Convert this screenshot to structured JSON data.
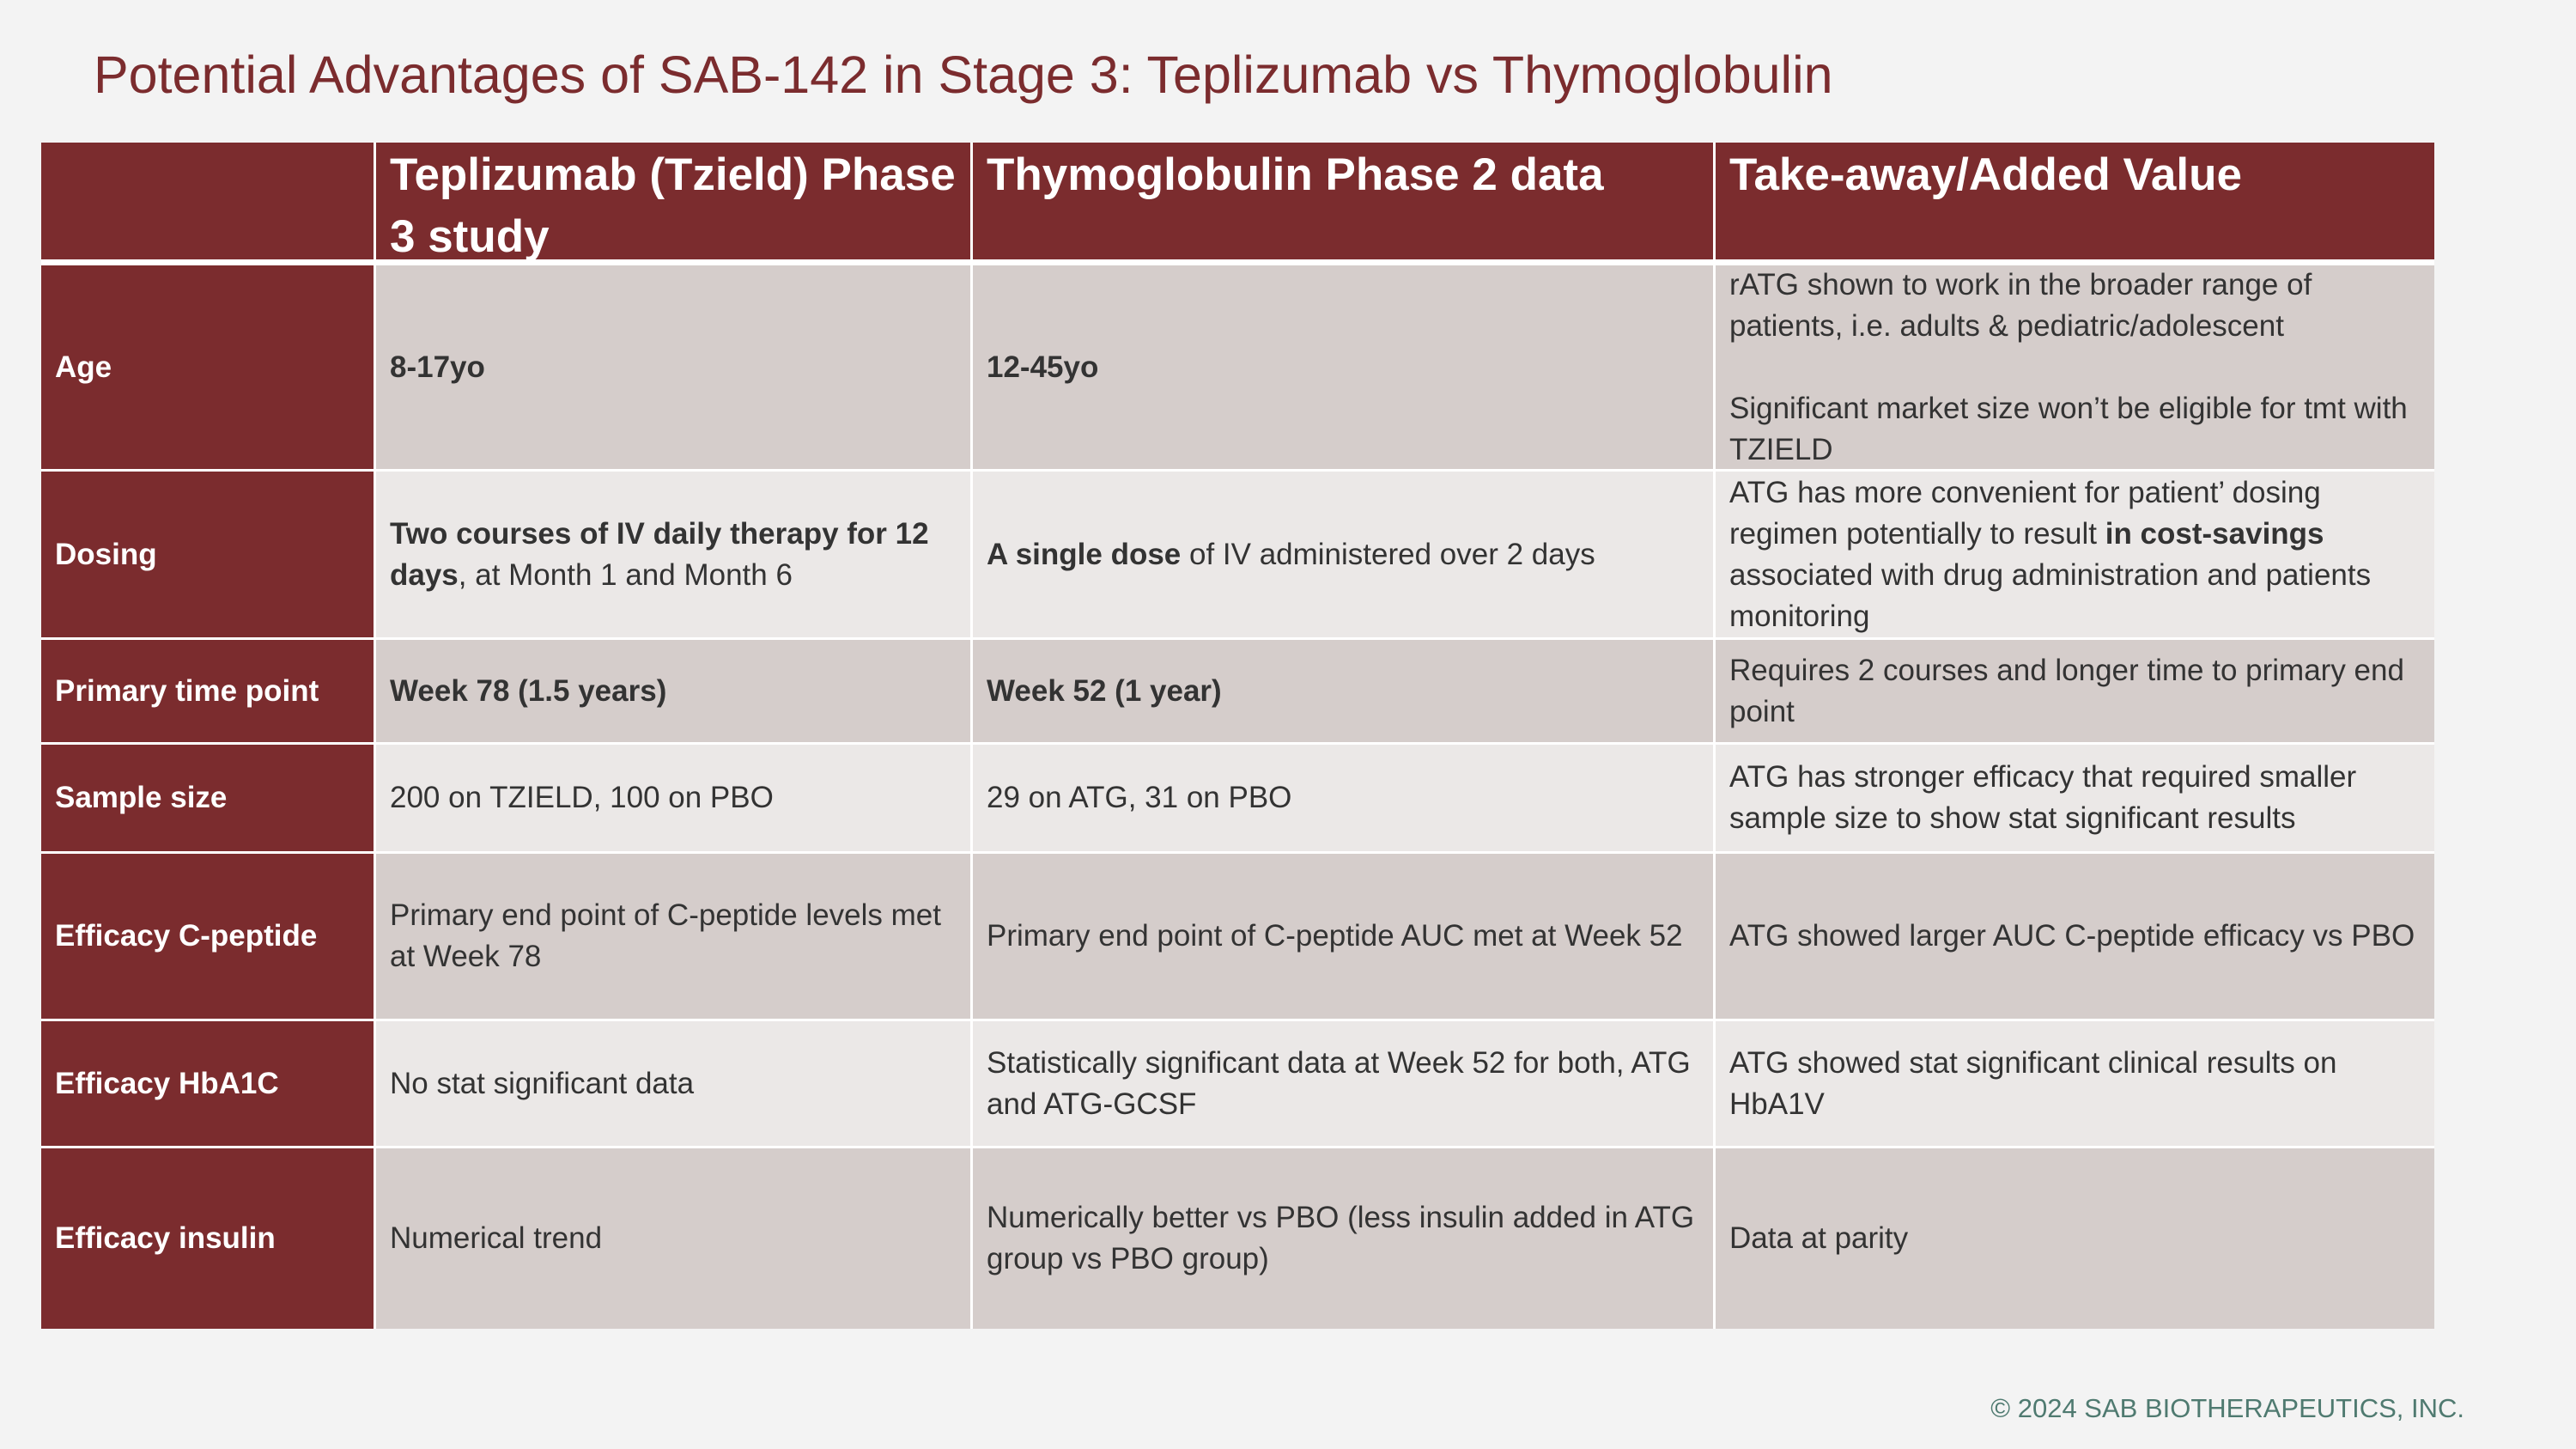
{
  "header": {
    "title": "Potential Advantages of SAB-142 in Stage 3: Teplizumab vs Thymoglobulin"
  },
  "table": {
    "columns": [
      "Teplizumab (Tzield) Phase 3 study",
      "Thymoglobulin Phase 2 data",
      "Take-away/Added Value"
    ],
    "rows": [
      {
        "label": "Age",
        "cells": [
          [
            [
              {
                "text": "8-17yo",
                "bold": true
              }
            ]
          ],
          [
            [
              {
                "text": "12-45yo",
                "bold": true
              }
            ]
          ],
          [
            [
              {
                "text": "rATG shown to work in the broader range of patients, i.e. adults & pediatric/adolescent"
              }
            ],
            [
              {
                "text": "Significant market size  won’t be eligible for tmt with TZIELD"
              }
            ]
          ]
        ]
      },
      {
        "label": "Dosing",
        "cells": [
          [
            [
              {
                "text": "Two courses of IV daily therapy for 12 days",
                "bold": true
              },
              {
                "text": ", at Month 1 and Month 6"
              }
            ]
          ],
          [
            [
              {
                "text": "A single  dose",
                "bold": true
              },
              {
                "text": " of IV administered over 2 days"
              }
            ]
          ],
          [
            [
              {
                "text": "ATG has more convenient for patient’  dosing regimen potentially to result "
              },
              {
                "text": "in cost-savings",
                "bold": true
              },
              {
                "text": " associated with drug administration and patients monitoring"
              }
            ]
          ]
        ]
      },
      {
        "label": "Primary time point",
        "cells": [
          [
            [
              {
                "text": "Week 78 (1.5 years)",
                "bold": true
              }
            ]
          ],
          [
            [
              {
                "text": "Week 52 (1 year)",
                "bold": true
              }
            ]
          ],
          [
            [
              {
                "text": "Requires 2 courses and longer time to primary end point"
              }
            ]
          ]
        ]
      },
      {
        "label": "Sample size",
        "cells": [
          [
            [
              {
                "text": "200 on TZIELD, 100 on PBO"
              }
            ]
          ],
          [
            [
              {
                "text": "29 on ATG, 31 on PBO"
              }
            ]
          ],
          [
            [
              {
                "text": "ATG has stronger efficacy that required smaller sample size to show stat significant results"
              }
            ]
          ]
        ]
      },
      {
        "label": "Efficacy C-peptide",
        "cells": [
          [
            [
              {
                "text": "Primary end point of C-peptide levels met at Week 78"
              }
            ]
          ],
          [
            [
              {
                "text": "Primary end point of C-peptide AUC met at Week 52"
              }
            ]
          ],
          [
            [
              {
                "text": "ATG showed larger AUC C-peptide efficacy vs PBO"
              }
            ]
          ]
        ]
      },
      {
        "label": "Efficacy HbA1C",
        "cells": [
          [
            [
              {
                "text": "No stat significant data"
              }
            ]
          ],
          [
            [
              {
                "text": "Statistically significant data at Week 52 for both, ATG and ATG-GCSF"
              }
            ]
          ],
          [
            [
              {
                "text": "ATG showed stat significant clinical results on HbA1V"
              }
            ]
          ]
        ]
      },
      {
        "label": "Efficacy insulin",
        "cells": [
          [
            [
              {
                "text": "Numerical trend"
              }
            ]
          ],
          [
            [
              {
                "text": "Numerically better vs PBO (less insulin added in ATG group vs PBO group)"
              }
            ]
          ],
          [
            [
              {
                "text": "Data at parity"
              }
            ]
          ]
        ]
      }
    ]
  },
  "footer": {
    "text": "© 2024 SAB BIOTHERAPEUTICS, INC."
  }
}
